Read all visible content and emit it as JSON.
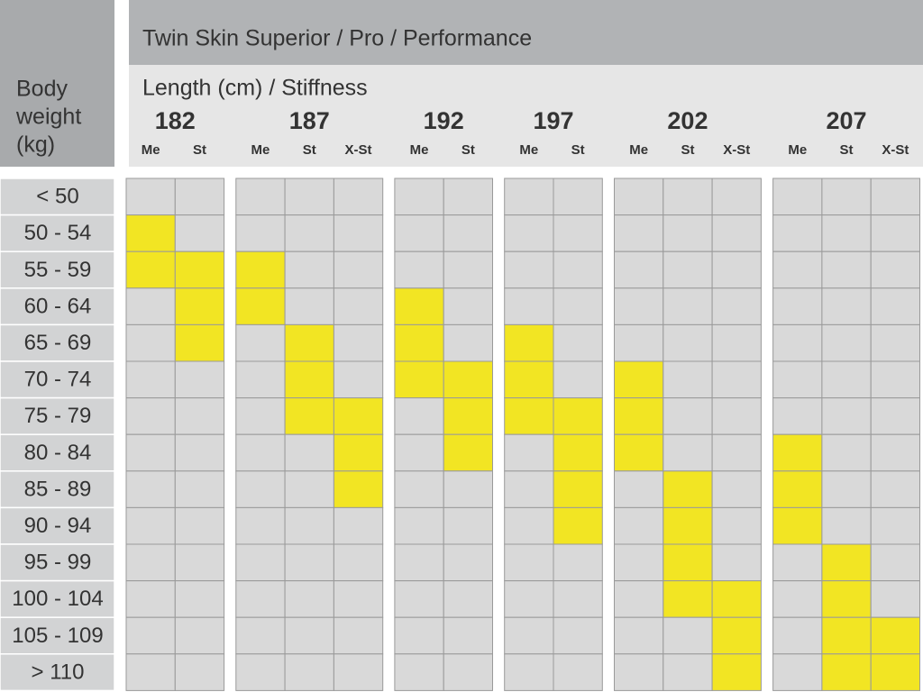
{
  "header": {
    "title": "Twin Skin Superior / Pro / Performance",
    "subtitle": "Length (cm) / Stiffness",
    "row_header": [
      "Body",
      "weight",
      "(kg)"
    ]
  },
  "colors": {
    "cell": "#d9d9d9",
    "highlight": "#f2e523"
  },
  "lengths": [
    {
      "label": "182",
      "stiffness": [
        "Me",
        "St"
      ]
    },
    {
      "label": "187",
      "stiffness": [
        "Me",
        "St",
        "X-St"
      ]
    },
    {
      "label": "192",
      "stiffness": [
        "Me",
        "St"
      ]
    },
    {
      "label": "197",
      "stiffness": [
        "Me",
        "St"
      ]
    },
    {
      "label": "202",
      "stiffness": [
        "Me",
        "St",
        "X-St"
      ]
    },
    {
      "label": "207",
      "stiffness": [
        "Me",
        "St",
        "X-St"
      ]
    }
  ],
  "rows": [
    {
      "label": "< 50",
      "cells": [
        false,
        false,
        false,
        false,
        false,
        false,
        false,
        false,
        false,
        false,
        false,
        false,
        false,
        false,
        false
      ]
    },
    {
      "label": "50 - 54",
      "cells": [
        true,
        false,
        false,
        false,
        false,
        false,
        false,
        false,
        false,
        false,
        false,
        false,
        false,
        false,
        false
      ]
    },
    {
      "label": "55 - 59",
      "cells": [
        true,
        true,
        true,
        false,
        false,
        false,
        false,
        false,
        false,
        false,
        false,
        false,
        false,
        false,
        false
      ]
    },
    {
      "label": "60 - 64",
      "cells": [
        false,
        true,
        true,
        false,
        false,
        true,
        false,
        false,
        false,
        false,
        false,
        false,
        false,
        false,
        false
      ]
    },
    {
      "label": "65 - 69",
      "cells": [
        false,
        true,
        false,
        true,
        false,
        true,
        false,
        true,
        false,
        false,
        false,
        false,
        false,
        false,
        false
      ]
    },
    {
      "label": "70 - 74",
      "cells": [
        false,
        false,
        false,
        true,
        false,
        true,
        true,
        true,
        false,
        true,
        false,
        false,
        false,
        false,
        false
      ]
    },
    {
      "label": "75 - 79",
      "cells": [
        false,
        false,
        false,
        true,
        true,
        false,
        true,
        true,
        true,
        true,
        false,
        false,
        false,
        false,
        false
      ]
    },
    {
      "label": "80 - 84",
      "cells": [
        false,
        false,
        false,
        false,
        true,
        false,
        true,
        false,
        true,
        true,
        false,
        false,
        true,
        false,
        false
      ]
    },
    {
      "label": "85 - 89",
      "cells": [
        false,
        false,
        false,
        false,
        true,
        false,
        false,
        false,
        true,
        false,
        true,
        false,
        true,
        false,
        false
      ]
    },
    {
      "label": "90 - 94",
      "cells": [
        false,
        false,
        false,
        false,
        false,
        false,
        false,
        false,
        true,
        false,
        true,
        false,
        true,
        false,
        false
      ]
    },
    {
      "label": "95 - 99",
      "cells": [
        false,
        false,
        false,
        false,
        false,
        false,
        false,
        false,
        false,
        false,
        true,
        false,
        false,
        true,
        false
      ]
    },
    {
      "label": "100 - 104",
      "cells": [
        false,
        false,
        false,
        false,
        false,
        false,
        false,
        false,
        false,
        false,
        true,
        true,
        false,
        true,
        false
      ]
    },
    {
      "label": "105 - 109",
      "cells": [
        false,
        false,
        false,
        false,
        false,
        false,
        false,
        false,
        false,
        false,
        false,
        true,
        false,
        true,
        true
      ]
    },
    {
      "label": "> 110",
      "cells": [
        false,
        false,
        false,
        false,
        false,
        false,
        false,
        false,
        false,
        false,
        false,
        true,
        false,
        true,
        true
      ]
    }
  ]
}
